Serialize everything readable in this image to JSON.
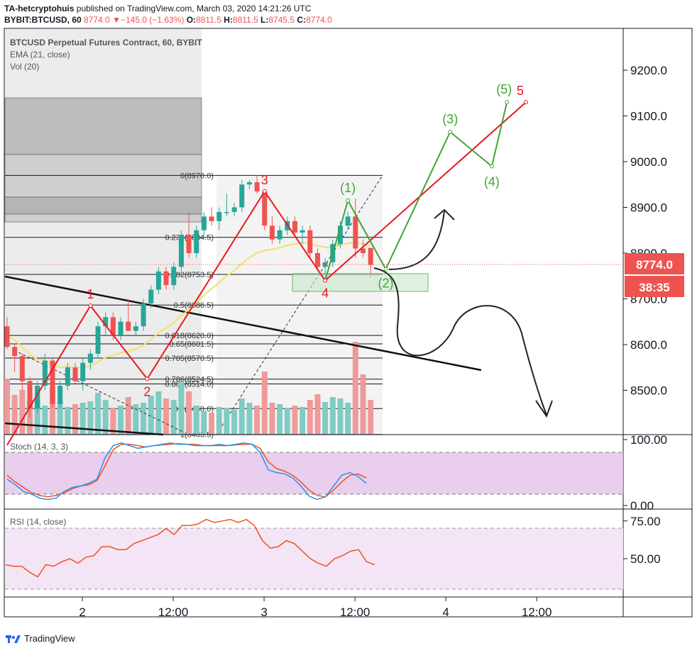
{
  "header": {
    "author": "TA-hetcryptohuis",
    "published": "published on TradingView.com, March 03, 2020 14:21:26 UTC",
    "symbol": "BYBIT:BTCUSD, 60",
    "last": "8774.0",
    "change": "−145.0 (−1.63%)",
    "change_arrow": "▼",
    "open_label": "O:",
    "open": "8811.5",
    "high_label": "H:",
    "high": "8811.5",
    "low_label": "L:",
    "low": "8745.5",
    "close_label": "C:",
    "close": "8774.0"
  },
  "legend": {
    "title": "BTCUSD Perpetual Futures Contract, 60, BYBIT",
    "ema": "EMA (21, close)",
    "vol": "Vol (20)",
    "stoch": "Stoch (14, 3, 3)",
    "rsi": "RSI (14, close)"
  },
  "price_badge": "8774.0",
  "countdown_badge": "38:35",
  "footer": {
    "brand": "TradingView"
  },
  "colors": {
    "up": "#26a69a",
    "down": "#ef5350",
    "ema": "#f5e06a",
    "wave_red": "#e8181f",
    "wave_green": "#3fa535",
    "stoch_k": "#2196f3",
    "stoch_d": "#f4511e",
    "rsi": "#f4511e",
    "stoch_band": "#e1bee7",
    "rsi_band": "#f3e5f5"
  },
  "chart_data": {
    "type": "candlestick",
    "price_axis": {
      "ticks": [
        "9200.0",
        "9100.0",
        "9000.0",
        "8900.0",
        "8800.0",
        "8700.0",
        "8600.0",
        "8500.0"
      ],
      "values": [
        9200,
        9100,
        9000,
        8900,
        8800,
        8700,
        8600,
        8500
      ]
    },
    "time_axis": {
      "ticks": [
        "2",
        "12:00",
        "3",
        "12:00",
        "4",
        "12:00"
      ],
      "hours": [
        24,
        36,
        48,
        60,
        72,
        84
      ]
    },
    "candles": [
      {
        "t": 0,
        "o": 8640,
        "h": 8660,
        "l": 8590,
        "c": 8595
      },
      {
        "t": 1,
        "o": 8595,
        "h": 8600,
        "l": 8540,
        "c": 8575
      },
      {
        "t": 2,
        "o": 8575,
        "h": 8580,
        "l": 8500,
        "c": 8520
      },
      {
        "t": 3,
        "o": 8520,
        "h": 8530,
        "l": 8440,
        "c": 8460
      },
      {
        "t": 4,
        "o": 8460,
        "h": 8520,
        "l": 8450,
        "c": 8510
      },
      {
        "t": 5,
        "o": 8510,
        "h": 8580,
        "l": 8500,
        "c": 8565
      },
      {
        "t": 6,
        "o": 8565,
        "h": 8570,
        "l": 8460,
        "c": 8470
      },
      {
        "t": 7,
        "o": 8470,
        "h": 8520,
        "l": 8460,
        "c": 8510
      },
      {
        "t": 8,
        "o": 8510,
        "h": 8560,
        "l": 8500,
        "c": 8550
      },
      {
        "t": 9,
        "o": 8550,
        "h": 8560,
        "l": 8515,
        "c": 8520
      },
      {
        "t": 10,
        "o": 8520,
        "h": 8570,
        "l": 8500,
        "c": 8560
      },
      {
        "t": 11,
        "o": 8560,
        "h": 8590,
        "l": 8545,
        "c": 8580
      },
      {
        "t": 12,
        "o": 8580,
        "h": 8650,
        "l": 8570,
        "c": 8640
      },
      {
        "t": 13,
        "o": 8640,
        "h": 8670,
        "l": 8620,
        "c": 8660
      },
      {
        "t": 14,
        "o": 8660,
        "h": 8670,
        "l": 8610,
        "c": 8620
      },
      {
        "t": 15,
        "o": 8620,
        "h": 8660,
        "l": 8610,
        "c": 8650
      },
      {
        "t": 16,
        "o": 8650,
        "h": 8700,
        "l": 8630,
        "c": 8630
      },
      {
        "t": 17,
        "o": 8630,
        "h": 8650,
        "l": 8620,
        "c": 8640
      },
      {
        "t": 18,
        "o": 8640,
        "h": 8700,
        "l": 8630,
        "c": 8690
      },
      {
        "t": 19,
        "o": 8690,
        "h": 8730,
        "l": 8680,
        "c": 8720
      },
      {
        "t": 20,
        "o": 8720,
        "h": 8770,
        "l": 8710,
        "c": 8760
      },
      {
        "t": 21,
        "o": 8760,
        "h": 8770,
        "l": 8720,
        "c": 8730
      },
      {
        "t": 22,
        "o": 8730,
        "h": 8780,
        "l": 8720,
        "c": 8770
      },
      {
        "t": 23,
        "o": 8770,
        "h": 8850,
        "l": 8760,
        "c": 8840
      },
      {
        "t": 24,
        "o": 8840,
        "h": 8890,
        "l": 8790,
        "c": 8800
      },
      {
        "t": 25,
        "o": 8800,
        "h": 8860,
        "l": 8790,
        "c": 8850
      },
      {
        "t": 26,
        "o": 8850,
        "h": 8890,
        "l": 8840,
        "c": 8880
      },
      {
        "t": 27,
        "o": 8880,
        "h": 8900,
        "l": 8860,
        "c": 8870
      },
      {
        "t": 28,
        "o": 8870,
        "h": 8900,
        "l": 8850,
        "c": 8890
      },
      {
        "t": 29,
        "o": 8890,
        "h": 8930,
        "l": 8880,
        "c": 8890
      },
      {
        "t": 30,
        "o": 8890,
        "h": 8910,
        "l": 8880,
        "c": 8900
      },
      {
        "t": 31,
        "o": 8900,
        "h": 8960,
        "l": 8890,
        "c": 8950
      },
      {
        "t": 32,
        "o": 8950,
        "h": 8960,
        "l": 8940,
        "c": 8955
      },
      {
        "t": 33,
        "o": 8955,
        "h": 8970,
        "l": 8930,
        "c": 8935
      },
      {
        "t": 34,
        "o": 8935,
        "h": 8940,
        "l": 8850,
        "c": 8860
      },
      {
        "t": 35,
        "o": 8860,
        "h": 8880,
        "l": 8820,
        "c": 8830
      },
      {
        "t": 36,
        "o": 8830,
        "h": 8860,
        "l": 8820,
        "c": 8850
      },
      {
        "t": 37,
        "o": 8850,
        "h": 8880,
        "l": 8840,
        "c": 8870
      },
      {
        "t": 38,
        "o": 8870,
        "h": 8880,
        "l": 8840,
        "c": 8845
      },
      {
        "t": 39,
        "o": 8845,
        "h": 8860,
        "l": 8820,
        "c": 8850
      },
      {
        "t": 40,
        "o": 8850,
        "h": 8860,
        "l": 8790,
        "c": 8800
      },
      {
        "t": 41,
        "o": 8800,
        "h": 8810,
        "l": 8760,
        "c": 8770
      },
      {
        "t": 42,
        "o": 8770,
        "h": 8790,
        "l": 8745,
        "c": 8780
      },
      {
        "t": 43,
        "o": 8780,
        "h": 8830,
        "l": 8770,
        "c": 8820
      },
      {
        "t": 44,
        "o": 8820,
        "h": 8870,
        "l": 8810,
        "c": 8860
      },
      {
        "t": 45,
        "o": 8860,
        "h": 8890,
        "l": 8850,
        "c": 8880
      },
      {
        "t": 46,
        "o": 8880,
        "h": 8920,
        "l": 8790,
        "c": 8810
      },
      {
        "t": 47,
        "o": 8810,
        "h": 8830,
        "l": 8790,
        "c": 8800
      },
      {
        "t": 48,
        "o": 8811.5,
        "h": 8811.5,
        "l": 8745.5,
        "c": 8774
      }
    ],
    "ema": [
      8620,
      8610,
      8595,
      8578,
      8568,
      8566,
      8555,
      8550,
      8551,
      8549,
      8550,
      8553,
      8562,
      8572,
      8576,
      8582,
      8586,
      8590,
      8599,
      8611,
      8626,
      8636,
      8648,
      8664,
      8676,
      8692,
      8708,
      8722,
      8736,
      8750,
      8762,
      8777,
      8790,
      8801,
      8806,
      8808,
      8812,
      8817,
      8820,
      8823,
      8821,
      8816,
      8813,
      8813,
      8817,
      8822,
      8822,
      8820,
      8816
    ],
    "volume": [
      78,
      55,
      62,
      48,
      50,
      40,
      66,
      45,
      38,
      42,
      44,
      46,
      58,
      48,
      36,
      40,
      52,
      42,
      44,
      54,
      60,
      50,
      48,
      74,
      60,
      40,
      32,
      30,
      38,
      36,
      34,
      50,
      44,
      40,
      88,
      44,
      42,
      36,
      40,
      38,
      48,
      56,
      45,
      52,
      50,
      44,
      130,
      84,
      48
    ],
    "fibonacci": {
      "levels": [
        {
          "label": "0(8970.0)",
          "value": 8970.0
        },
        {
          "label": "0.236(8834.5)",
          "value": 8834.5
        },
        {
          "label": "0.382(8753.5)",
          "value": 8753.5
        },
        {
          "label": "0.5(8686.5)",
          "value": 8686.5
        },
        {
          "label": "0.618(8620.0)",
          "value": 8620.0
        },
        {
          "label": "0.65(8601.5)",
          "value": 8601.5
        },
        {
          "label": "0.705(8570.5)",
          "value": 8570.5
        },
        {
          "label": "0.786(8524.5)",
          "value": 8524.5
        },
        {
          "label": "0.805(8514.0)",
          "value": 8514.0
        },
        {
          "label": "0.9(8460.0)",
          "value": 8460.0
        },
        {
          "label": "1(8403.5)",
          "value": 8403.5
        }
      ]
    },
    "wave_labels": {
      "red": [
        {
          "label": "1",
          "t": 11,
          "price": 8685
        },
        {
          "label": "2",
          "t": 18.5,
          "price": 8525
        },
        {
          "label": "3",
          "t": 34,
          "price": 8935
        },
        {
          "label": "4",
          "t": 42,
          "price": 8740
        },
        {
          "label": "5",
          "t": 68.5,
          "price": 9130
        }
      ],
      "green": [
        {
          "label": "(1)",
          "t": 45,
          "price": 8915
        },
        {
          "label": "(2)",
          "t": 50,
          "price": 8765
        },
        {
          "label": "(3)",
          "t": 58.5,
          "price": 9065
        },
        {
          "label": "(4)",
          "t": 64,
          "price": 8990
        },
        {
          "label": "(5)",
          "t": 66,
          "price": 9130
        }
      ]
    },
    "stoch": {
      "axis_ticks": [
        "100.00",
        "0.00"
      ],
      "k": [
        40,
        32,
        22,
        18,
        12,
        10,
        12,
        22,
        28,
        30,
        34,
        40,
        72,
        90,
        94,
        90,
        86,
        88,
        90,
        92,
        94,
        92,
        92,
        90,
        90,
        90,
        92,
        90,
        92,
        94,
        92,
        80,
        54,
        50,
        48,
        42,
        30,
        15,
        10,
        14,
        30,
        46,
        50,
        44,
        34
      ],
      "d": [
        46,
        36,
        28,
        20,
        16,
        14,
        16,
        20,
        26,
        30,
        32,
        38,
        60,
        84,
        92,
        92,
        90,
        88,
        90,
        91,
        92,
        93,
        92,
        92,
        90,
        90,
        90,
        90,
        91,
        92,
        92,
        86,
        66,
        56,
        52,
        46,
        36,
        24,
        16,
        14,
        24,
        36,
        46,
        48,
        42
      ]
    },
    "rsi": {
      "axis_ticks": [
        "75.00",
        "50.00"
      ],
      "values": [
        46,
        45,
        45,
        41,
        38,
        46,
        45,
        48,
        50,
        47,
        51,
        52,
        58,
        58,
        56,
        56,
        60,
        62,
        64,
        66,
        70,
        66,
        72,
        72,
        73,
        76,
        74,
        75,
        76,
        74,
        76,
        72,
        62,
        57,
        58,
        62,
        60,
        55,
        50,
        47,
        45,
        50,
        52,
        55,
        56,
        48,
        46
      ]
    }
  }
}
